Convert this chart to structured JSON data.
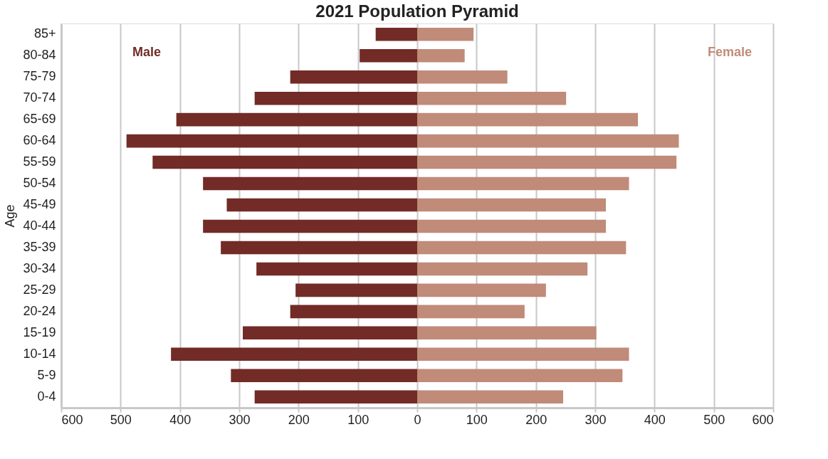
{
  "chart_data": {
    "type": "bar",
    "orientation": "horizontal",
    "title": "2021 Population Pyramid",
    "ylabel": "Age",
    "legend": false,
    "grid": "x",
    "stacked": true,
    "categories": [
      "85+",
      "80-84",
      "75-79",
      "70-74",
      "65-69",
      "60-64",
      "55-59",
      "50-54",
      "45-49",
      "40-44",
      "35-39",
      "30-34",
      "25-29",
      "20-24",
      "15-19",
      "10-14",
      "5-9",
      "0-4"
    ],
    "series": [
      {
        "name": "Male",
        "color": "#722b26",
        "values": [
          -70,
          -97,
          -214,
          -274,
          -406,
          -490,
          -446,
          -361,
          -321,
          -361,
          -331,
          -271,
          -205,
          -214,
          -294,
          -415,
          -314,
          -274
        ]
      },
      {
        "name": "Female",
        "color": "#c08b78",
        "values": [
          95,
          80,
          152,
          251,
          372,
          441,
          437,
          357,
          318,
          318,
          352,
          287,
          217,
          181,
          302,
          357,
          346,
          246
        ]
      }
    ],
    "xlim": [
      -600,
      600
    ],
    "xticks": [
      {
        "value": -600,
        "label": "600"
      },
      {
        "value": -500,
        "label": "500"
      },
      {
        "value": -400,
        "label": "400"
      },
      {
        "value": -300,
        "label": "300"
      },
      {
        "value": -200,
        "label": "200"
      },
      {
        "value": -100,
        "label": "100"
      },
      0,
      100,
      200,
      300,
      400,
      500,
      600
    ]
  }
}
